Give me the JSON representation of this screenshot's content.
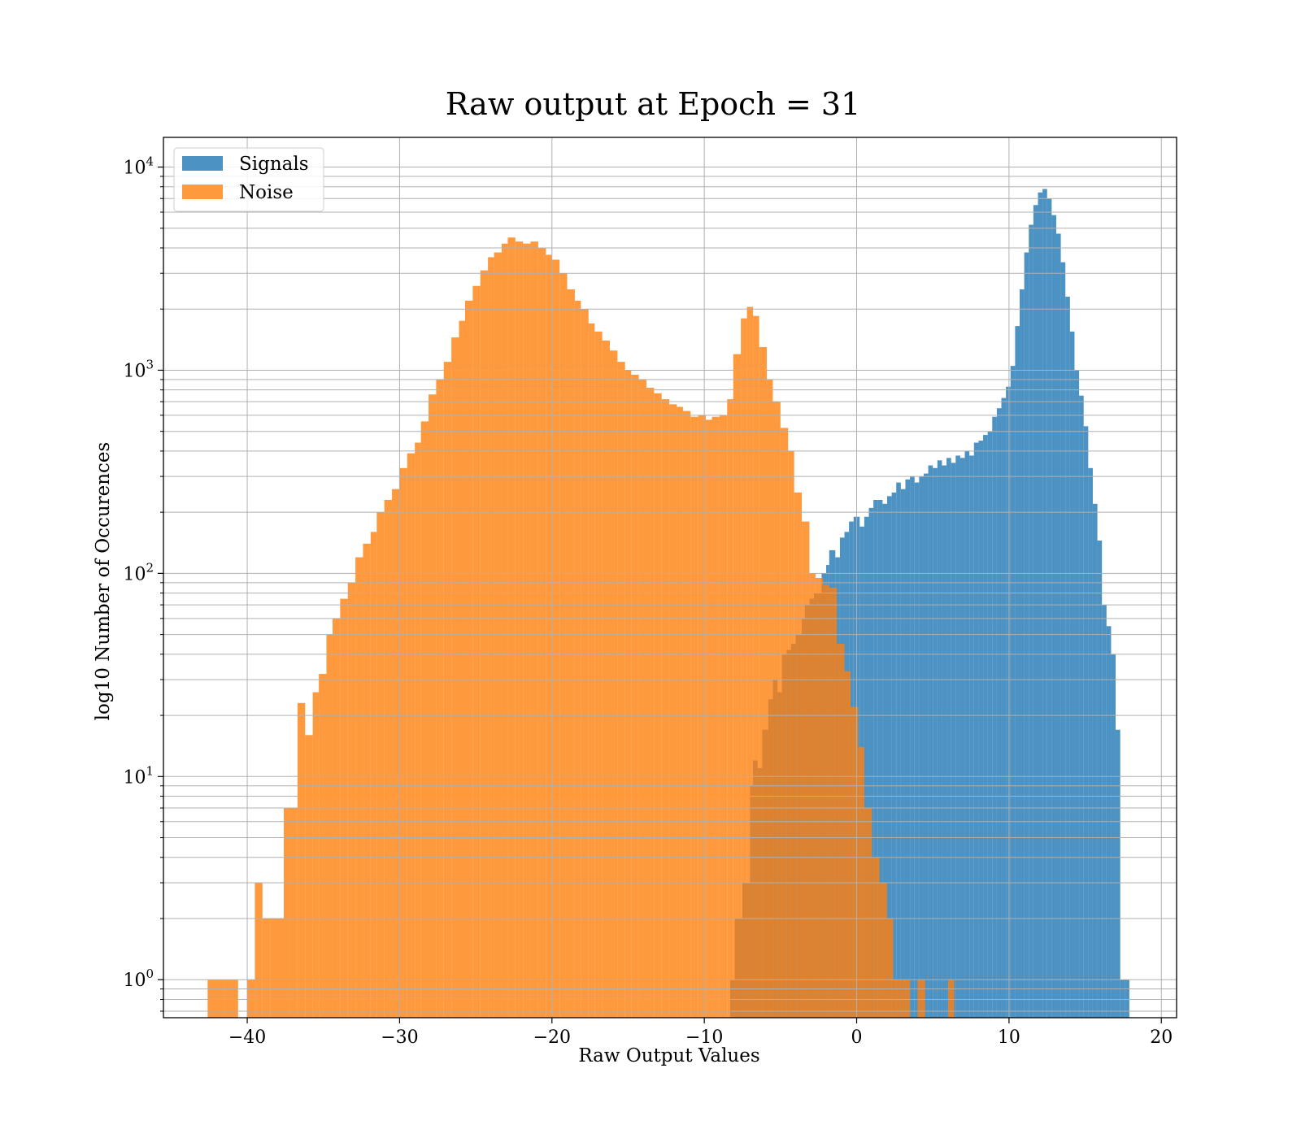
{
  "chart_data": {
    "type": "histogram",
    "title": "Raw output at Epoch = 31",
    "xlabel": "Raw Output Values",
    "ylabel": "log10 Number of Occurences",
    "xlim": [
      -45.5,
      21
    ],
    "ylim": [
      0.65,
      14000
    ],
    "yscale": "log",
    "grid": true,
    "legend_position": "top-left",
    "x_ticks": [
      {
        "value": -40,
        "label": "−40"
      },
      {
        "value": -30,
        "label": "−30"
      },
      {
        "value": -20,
        "label": "−20"
      },
      {
        "value": -10,
        "label": "−10"
      },
      {
        "value": 0,
        "label": "0"
      },
      {
        "value": 10,
        "label": "10"
      },
      {
        "value": 20,
        "label": "20"
      }
    ],
    "y_ticks": [
      {
        "value": 1,
        "base": "10",
        "exp": "0"
      },
      {
        "value": 10,
        "base": "10",
        "exp": "1"
      },
      {
        "value": 100,
        "base": "10",
        "exp": "2"
      },
      {
        "value": 1000,
        "base": "10",
        "exp": "3"
      },
      {
        "value": 10000,
        "base": "10",
        "exp": "4"
      }
    ],
    "series": [
      {
        "name": "Signals",
        "color": "#1f77b4",
        "opacity": 0.8,
        "bins": [
          [
            -8.3,
            -8.0,
            1
          ],
          [
            -8.0,
            -7.5,
            2
          ],
          [
            -7.5,
            -7.2,
            3
          ],
          [
            -7.2,
            -7.0,
            3
          ],
          [
            -7.0,
            -6.8,
            9
          ],
          [
            -6.8,
            -6.5,
            12
          ],
          [
            -6.5,
            -6.2,
            11
          ],
          [
            -6.2,
            -5.8,
            17
          ],
          [
            -5.8,
            -5.5,
            24
          ],
          [
            -5.5,
            -5.2,
            30
          ],
          [
            -5.2,
            -4.9,
            26
          ],
          [
            -4.9,
            -4.6,
            40
          ],
          [
            -4.6,
            -4.3,
            42
          ],
          [
            -4.3,
            -4.0,
            45
          ],
          [
            -4.0,
            -3.6,
            50
          ],
          [
            -3.6,
            -3.4,
            60
          ],
          [
            -3.4,
            -3.1,
            70
          ],
          [
            -3.1,
            -2.8,
            75
          ],
          [
            -2.8,
            -2.6,
            80
          ],
          [
            -2.6,
            -2.3,
            80
          ],
          [
            -2.3,
            -2.0,
            100
          ],
          [
            -2.0,
            -1.8,
            110
          ],
          [
            -1.8,
            -1.4,
            130
          ],
          [
            -1.4,
            -1.1,
            120
          ],
          [
            -1.1,
            -0.8,
            150
          ],
          [
            -0.8,
            -0.5,
            160
          ],
          [
            -0.5,
            -0.2,
            180
          ],
          [
            -0.2,
            0.2,
            190
          ],
          [
            0.2,
            0.5,
            170
          ],
          [
            0.5,
            0.8,
            190
          ],
          [
            0.8,
            1.1,
            210
          ],
          [
            1.1,
            1.4,
            230
          ],
          [
            1.4,
            1.7,
            230
          ],
          [
            1.7,
            2.0,
            220
          ],
          [
            2.0,
            2.3,
            240
          ],
          [
            2.3,
            2.6,
            250
          ],
          [
            2.6,
            2.9,
            280
          ],
          [
            2.9,
            3.2,
            260
          ],
          [
            3.2,
            3.5,
            290
          ],
          [
            3.5,
            3.8,
            300
          ],
          [
            3.8,
            4.1,
            280
          ],
          [
            4.1,
            4.4,
            300
          ],
          [
            4.4,
            4.7,
            310
          ],
          [
            4.7,
            5.0,
            340
          ],
          [
            5.0,
            5.3,
            330
          ],
          [
            5.3,
            5.6,
            360
          ],
          [
            5.6,
            5.9,
            340
          ],
          [
            5.9,
            6.2,
            370
          ],
          [
            6.2,
            6.5,
            350
          ],
          [
            6.5,
            6.8,
            380
          ],
          [
            6.8,
            7.1,
            370
          ],
          [
            7.1,
            7.4,
            400
          ],
          [
            7.4,
            7.7,
            380
          ],
          [
            7.7,
            8.0,
            440
          ],
          [
            8.0,
            8.3,
            450
          ],
          [
            8.3,
            8.6,
            480
          ],
          [
            8.6,
            8.9,
            500
          ],
          [
            8.9,
            9.2,
            590
          ],
          [
            9.2,
            9.5,
            650
          ],
          [
            9.5,
            9.8,
            730
          ],
          [
            9.8,
            10.1,
            830
          ],
          [
            10.1,
            10.4,
            1050
          ],
          [
            10.4,
            10.7,
            1650
          ],
          [
            10.7,
            11.0,
            2500
          ],
          [
            11.0,
            11.3,
            3800
          ],
          [
            11.3,
            11.6,
            5200
          ],
          [
            11.6,
            11.9,
            6500
          ],
          [
            11.9,
            12.2,
            7500
          ],
          [
            12.2,
            12.5,
            7800
          ],
          [
            12.5,
            12.8,
            7000
          ],
          [
            12.8,
            13.1,
            5800
          ],
          [
            13.1,
            13.4,
            4700
          ],
          [
            13.4,
            13.7,
            3400
          ],
          [
            13.7,
            14.0,
            2300
          ],
          [
            14.0,
            14.3,
            1550
          ],
          [
            14.3,
            14.6,
            1000
          ],
          [
            14.6,
            14.9,
            750
          ],
          [
            14.9,
            15.2,
            530
          ],
          [
            15.2,
            15.5,
            330
          ],
          [
            15.5,
            15.8,
            220
          ],
          [
            15.8,
            16.1,
            145
          ],
          [
            16.1,
            16.4,
            70
          ],
          [
            16.4,
            16.7,
            55
          ],
          [
            16.7,
            17.0,
            40
          ],
          [
            17.0,
            17.3,
            17
          ],
          [
            17.3,
            17.6,
            1
          ],
          [
            17.6,
            17.9,
            1
          ]
        ]
      },
      {
        "name": "Noise",
        "color": "#ff7f0e",
        "opacity": 0.8,
        "bins": [
          [
            -42.6,
            -41.5,
            1
          ],
          [
            -41.5,
            -40.6,
            1
          ],
          [
            -40.0,
            -39.5,
            1
          ],
          [
            -39.5,
            -39.0,
            3
          ],
          [
            -39.0,
            -38.5,
            2
          ],
          [
            -38.5,
            -37.6,
            2
          ],
          [
            -37.6,
            -37.2,
            7
          ],
          [
            -37.2,
            -36.7,
            7
          ],
          [
            -36.7,
            -36.2,
            23
          ],
          [
            -36.2,
            -35.7,
            16
          ],
          [
            -35.7,
            -35.3,
            26
          ],
          [
            -35.3,
            -34.8,
            32
          ],
          [
            -34.8,
            -34.4,
            50
          ],
          [
            -34.4,
            -33.9,
            60
          ],
          [
            -33.9,
            -33.4,
            75
          ],
          [
            -33.4,
            -32.9,
            90
          ],
          [
            -32.9,
            -32.4,
            120
          ],
          [
            -32.4,
            -31.9,
            140
          ],
          [
            -31.9,
            -31.5,
            160
          ],
          [
            -31.5,
            -31.0,
            200
          ],
          [
            -31.0,
            -30.5,
            230
          ],
          [
            -30.5,
            -30.0,
            260
          ],
          [
            -30.0,
            -29.5,
            330
          ],
          [
            -29.5,
            -29.0,
            390
          ],
          [
            -29.0,
            -28.6,
            440
          ],
          [
            -28.6,
            -28.1,
            560
          ],
          [
            -28.1,
            -27.6,
            760
          ],
          [
            -27.6,
            -27.1,
            900
          ],
          [
            -27.1,
            -26.6,
            1100
          ],
          [
            -26.6,
            -26.1,
            1450
          ],
          [
            -26.1,
            -25.7,
            1750
          ],
          [
            -25.7,
            -25.2,
            2200
          ],
          [
            -25.2,
            -24.7,
            2600
          ],
          [
            -24.7,
            -24.2,
            3100
          ],
          [
            -24.2,
            -23.8,
            3600
          ],
          [
            -23.8,
            -23.3,
            3800
          ],
          [
            -23.3,
            -22.9,
            4200
          ],
          [
            -22.9,
            -22.4,
            4500
          ],
          [
            -22.4,
            -21.9,
            4300
          ],
          [
            -21.9,
            -21.4,
            4200
          ],
          [
            -21.4,
            -20.9,
            4300
          ],
          [
            -20.9,
            -20.4,
            4000
          ],
          [
            -20.4,
            -20.0,
            3700
          ],
          [
            -20.0,
            -19.5,
            3500
          ],
          [
            -19.5,
            -19.0,
            3000
          ],
          [
            -19.0,
            -18.5,
            2500
          ],
          [
            -18.5,
            -18.1,
            2200
          ],
          [
            -18.1,
            -17.6,
            2000
          ],
          [
            -17.6,
            -17.2,
            1700
          ],
          [
            -17.2,
            -16.7,
            1550
          ],
          [
            -16.7,
            -16.2,
            1400
          ],
          [
            -16.2,
            -15.7,
            1250
          ],
          [
            -15.7,
            -15.2,
            1100
          ],
          [
            -15.2,
            -14.8,
            1000
          ],
          [
            -14.8,
            -14.3,
            950
          ],
          [
            -14.3,
            -13.8,
            900
          ],
          [
            -13.8,
            -13.3,
            820
          ],
          [
            -13.3,
            -12.8,
            770
          ],
          [
            -12.8,
            -12.3,
            720
          ],
          [
            -12.3,
            -11.8,
            680
          ],
          [
            -11.8,
            -11.4,
            660
          ],
          [
            -11.4,
            -10.9,
            630
          ],
          [
            -10.9,
            -10.4,
            590
          ],
          [
            -10.4,
            -9.9,
            600
          ],
          [
            -9.9,
            -9.5,
            570
          ],
          [
            -9.5,
            -9.0,
            590
          ],
          [
            -9.0,
            -8.5,
            600
          ],
          [
            -8.5,
            -8.1,
            720
          ],
          [
            -8.1,
            -7.6,
            1200
          ],
          [
            -7.6,
            -7.2,
            1800
          ],
          [
            -7.2,
            -6.8,
            2050
          ],
          [
            -6.8,
            -6.4,
            1850
          ],
          [
            -6.4,
            -5.9,
            1300
          ],
          [
            -5.9,
            -5.5,
            900
          ],
          [
            -5.5,
            -5.0,
            700
          ],
          [
            -5.0,
            -4.5,
            520
          ],
          [
            -4.5,
            -4.1,
            400
          ],
          [
            -4.1,
            -3.6,
            250
          ],
          [
            -3.6,
            -3.1,
            180
          ],
          [
            -3.1,
            -2.7,
            100
          ],
          [
            -2.7,
            -2.2,
            95
          ],
          [
            -2.2,
            -1.8,
            88
          ],
          [
            -1.8,
            -1.3,
            85
          ],
          [
            -1.3,
            -0.8,
            45
          ],
          [
            -0.8,
            -0.4,
            33
          ],
          [
            -0.4,
            0.1,
            22
          ],
          [
            0.1,
            0.5,
            14
          ],
          [
            0.5,
            1.0,
            7
          ],
          [
            1.0,
            1.5,
            4
          ],
          [
            1.5,
            2.0,
            3
          ],
          [
            2.0,
            2.4,
            2
          ],
          [
            2.4,
            3.0,
            1
          ],
          [
            3.0,
            3.5,
            1
          ],
          [
            4.0,
            4.5,
            1
          ],
          [
            6.0,
            6.4,
            1
          ]
        ]
      }
    ]
  }
}
